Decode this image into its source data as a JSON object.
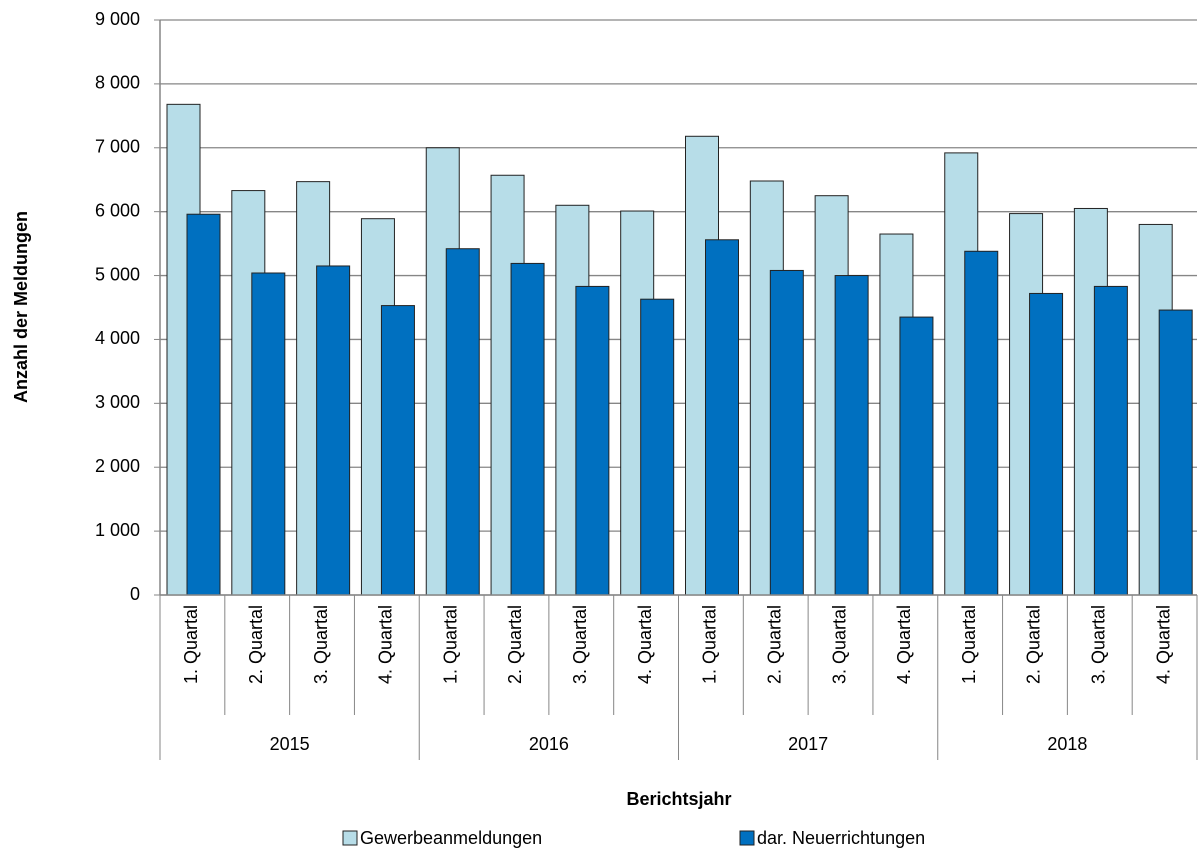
{
  "chart_data": {
    "type": "bar",
    "x_label": "Berichtsjahr",
    "y_label": "Anzahl der Meldungen",
    "categories": [
      "1. Quartal",
      "2. Quartal",
      "3. Quartal",
      "4. Quartal",
      "1. Quartal",
      "2. Quartal",
      "3. Quartal",
      "4. Quartal",
      "1. Quartal",
      "2. Quartal",
      "3. Quartal",
      "4. Quartal",
      "1. Quartal",
      "2. Quartal",
      "3. Quartal",
      "4. Quartal"
    ],
    "groups": [
      "2015",
      "2016",
      "2017",
      "2018"
    ],
    "series": [
      {
        "name": "Gewerbeanmeldungen",
        "color": "#b7dde8",
        "values": [
          7680,
          6330,
          6470,
          5890,
          7000,
          6570,
          6100,
          6010,
          7180,
          6480,
          6250,
          5650,
          6920,
          5970,
          6050,
          5800
        ]
      },
      {
        "name": "dar. Neuerrichtungen",
        "color": "#0070c0",
        "values": [
          5960,
          5040,
          5150,
          4530,
          5420,
          5190,
          4830,
          4630,
          5560,
          5080,
          5000,
          4350,
          5380,
          4720,
          4830,
          4460
        ]
      }
    ],
    "ylim": [
      0,
      9000
    ],
    "yticks": [
      0,
      {
        "value": 1000,
        "label": "1 000"
      },
      {
        "value": 2000,
        "label": "2 000"
      },
      {
        "value": 3000,
        "label": "3 000"
      },
      {
        "value": 4000,
        "label": "4 000"
      },
      {
        "value": 5000,
        "label": "5 000"
      },
      {
        "value": 6000,
        "label": "6 000"
      },
      {
        "value": 7000,
        "label": "7 000"
      },
      {
        "value": 8000,
        "label": "8 000"
      },
      {
        "value": 9000,
        "label": "9 000"
      }
    ],
    "grid": true,
    "legend": "bottom"
  }
}
